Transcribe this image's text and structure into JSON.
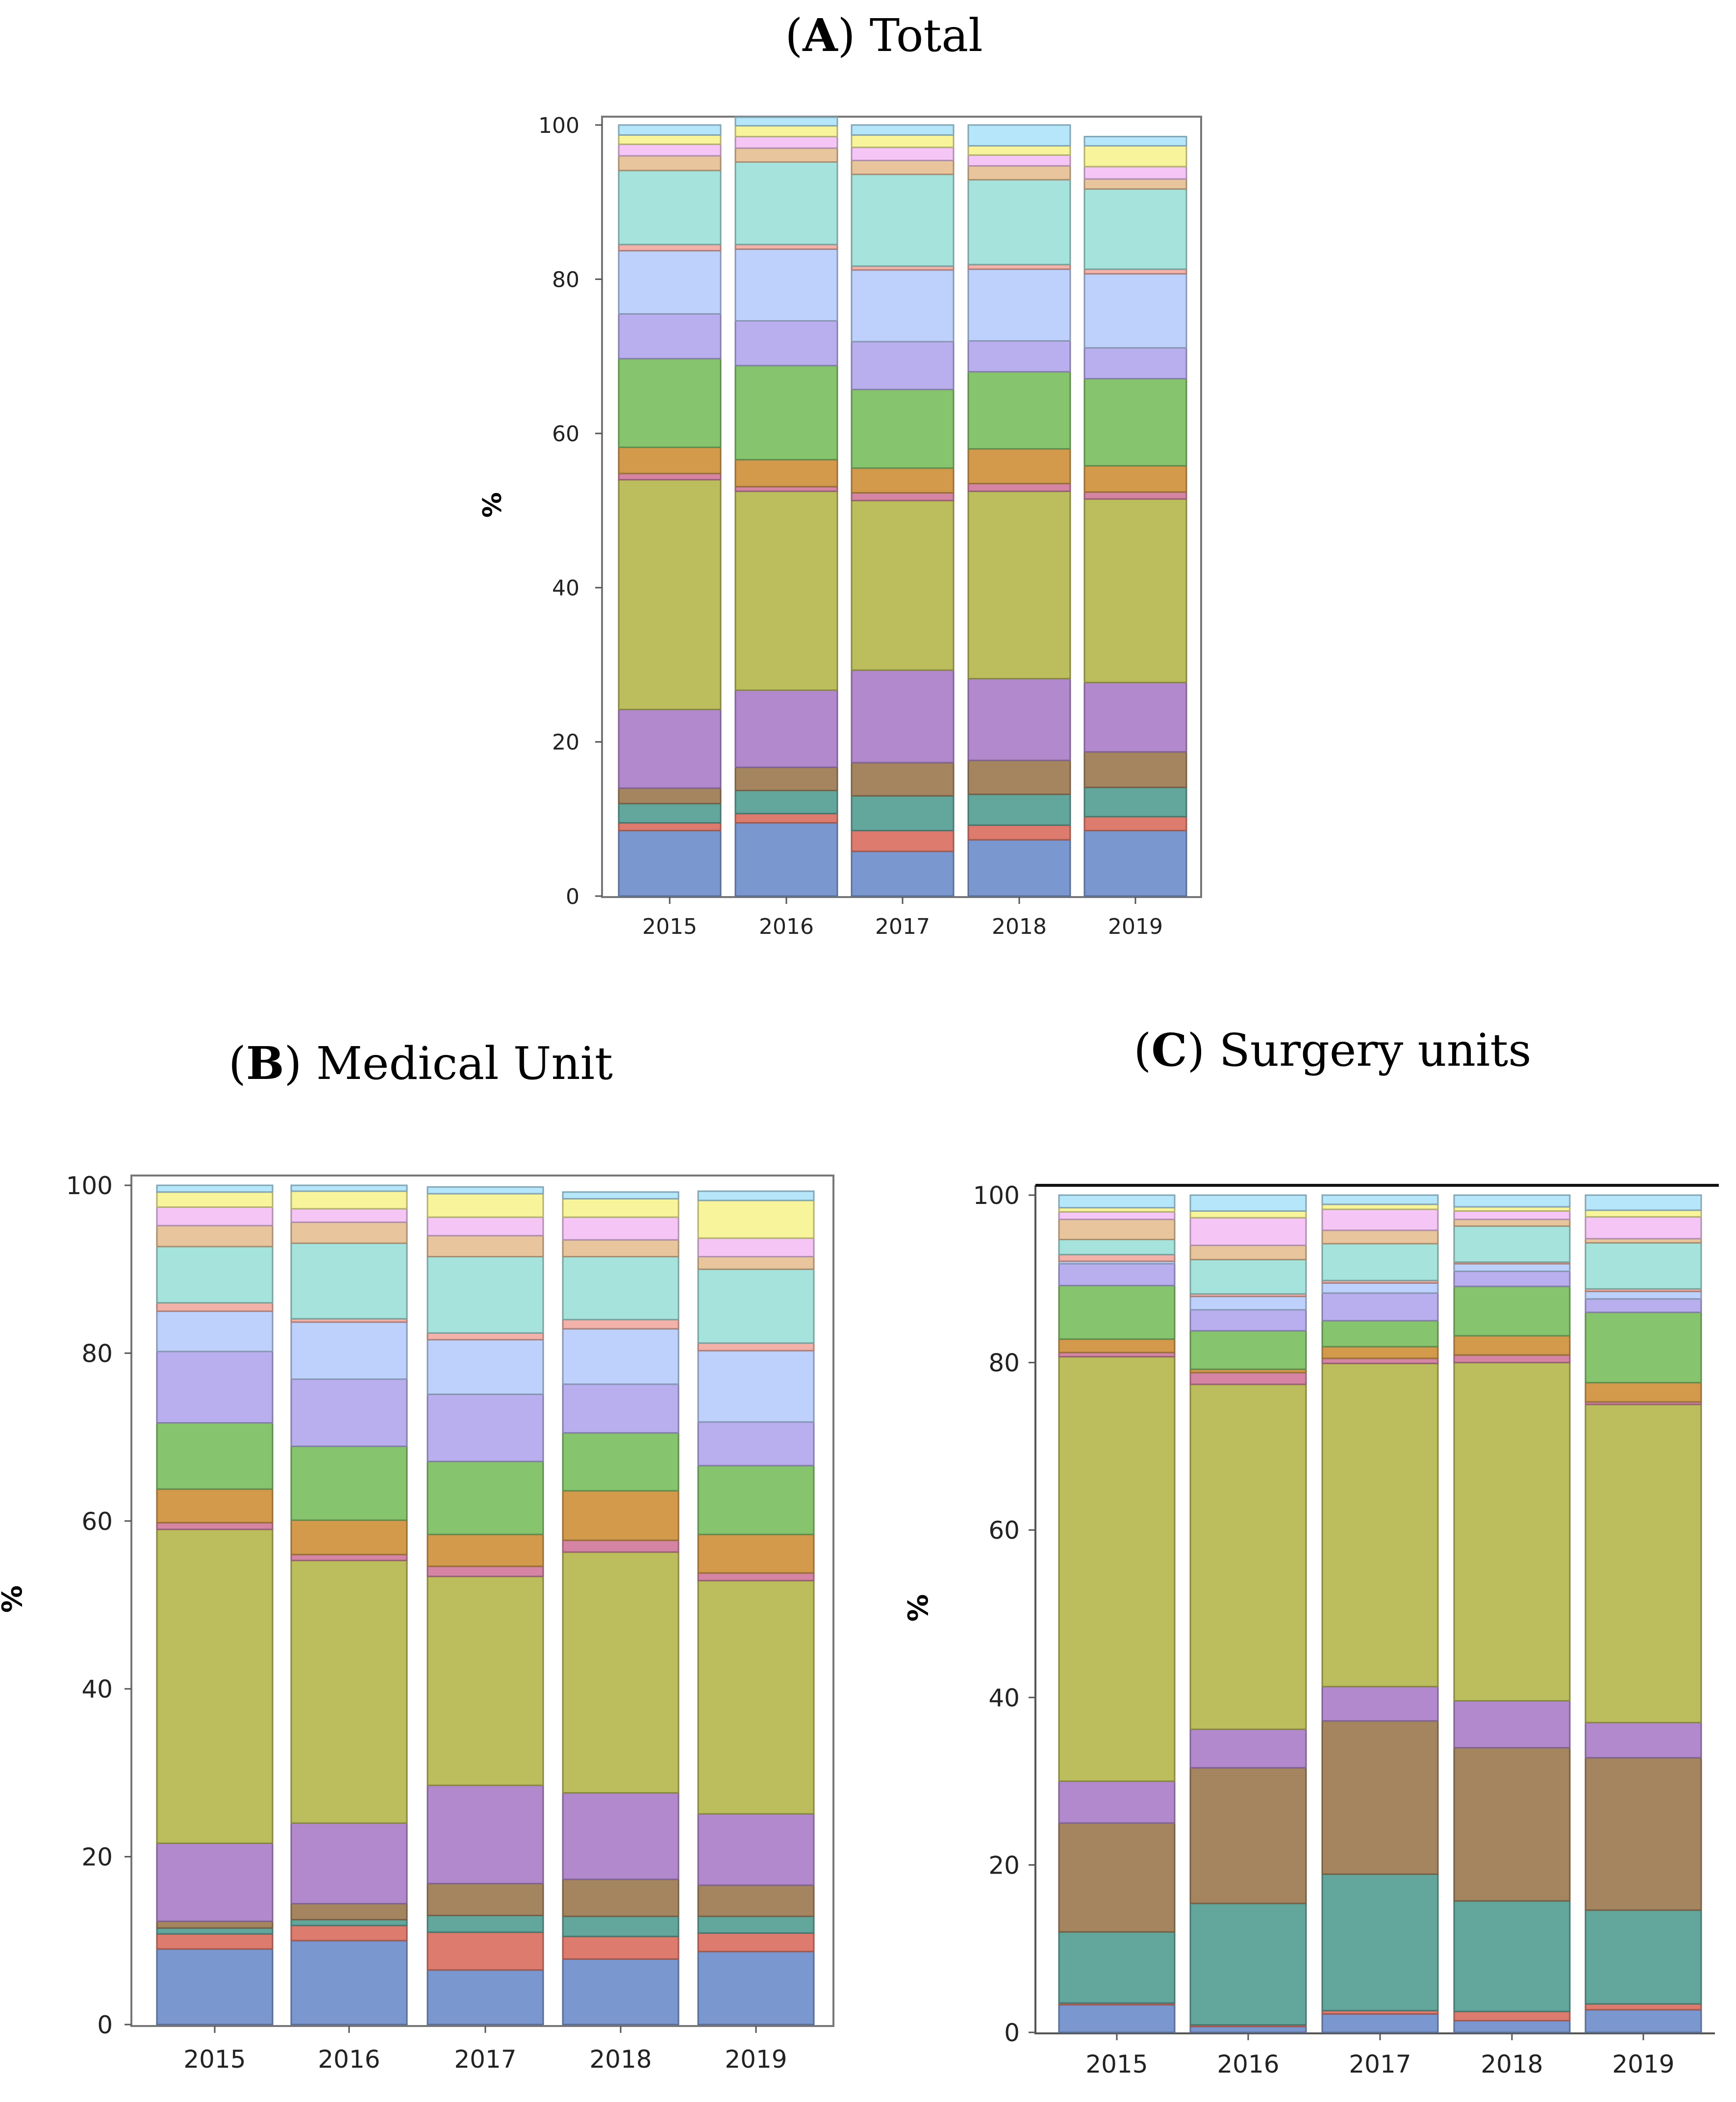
{
  "chart_data": [
    {
      "id": "A",
      "type": "bar",
      "stacked": true,
      "title_letter": "A",
      "title_text": "Total",
      "xlabel": "",
      "ylabel": "%",
      "ylim": [
        0,
        100
      ],
      "yticks": [
        "0",
        "20",
        "40",
        "60",
        "80",
        "100"
      ],
      "categories": [
        "2015",
        "2016",
        "2017",
        "2018",
        "2019"
      ],
      "series": [
        {
          "color": "#7b97cf",
          "values": [
            8.5,
            9.5,
            5.8,
            7.3,
            8.5
          ]
        },
        {
          "color": "#dd7b6e",
          "values": [
            1.0,
            1.2,
            2.7,
            1.9,
            1.8
          ]
        },
        {
          "color": "#62a69c",
          "values": [
            2.5,
            3.0,
            4.5,
            4.0,
            3.8
          ]
        },
        {
          "color": "#a58560",
          "values": [
            2.0,
            3.0,
            4.3,
            4.4,
            4.6
          ]
        },
        {
          "color": "#b289cc",
          "values": [
            10.2,
            10.0,
            12.0,
            10.6,
            9.0
          ]
        },
        {
          "color": "#bcbd5c",
          "values": [
            29.8,
            25.8,
            22.0,
            24.3,
            23.8
          ]
        },
        {
          "color": "#d585a3",
          "values": [
            0.8,
            0.6,
            1.0,
            1.0,
            0.9
          ]
        },
        {
          "color": "#d39a4c",
          "values": [
            3.4,
            3.5,
            3.2,
            4.5,
            3.4
          ]
        },
        {
          "color": "#86c46d",
          "values": [
            11.5,
            12.2,
            10.2,
            10.0,
            11.3
          ]
        },
        {
          "color": "#b9afee",
          "values": [
            5.8,
            5.8,
            6.2,
            4.0,
            4.0
          ]
        },
        {
          "color": "#bdd1fc",
          "values": [
            8.2,
            9.3,
            9.3,
            9.3,
            9.6
          ]
        },
        {
          "color": "#f2b2aa",
          "values": [
            0.8,
            0.6,
            0.5,
            0.6,
            0.6
          ]
        },
        {
          "color": "#a6e3dd",
          "values": [
            9.6,
            10.7,
            11.9,
            11.0,
            10.4
          ]
        },
        {
          "color": "#e9c59d",
          "values": [
            1.9,
            1.8,
            1.8,
            1.8,
            1.3
          ]
        },
        {
          "color": "#f5c6f5",
          "values": [
            1.5,
            1.5,
            1.7,
            1.4,
            1.6
          ]
        },
        {
          "color": "#f8f49b",
          "values": [
            1.2,
            1.4,
            1.6,
            1.2,
            2.7
          ]
        },
        {
          "color": "#b6e6fa",
          "values": [
            1.3,
            1.1,
            1.3,
            2.7,
            1.2
          ]
        }
      ]
    },
    {
      "id": "B",
      "type": "bar",
      "stacked": true,
      "title_letter": "B",
      "title_text": "Medical Unit",
      "xlabel": "",
      "ylabel": "%",
      "ylim": [
        0,
        100
      ],
      "yticks": [
        "0",
        "20",
        "40",
        "60",
        "80",
        "100"
      ],
      "categories": [
        "2015",
        "2016",
        "2017",
        "2018",
        "2019"
      ],
      "series": [
        {
          "color": "#7b97cf",
          "values": [
            9.0,
            10.0,
            6.5,
            7.8,
            8.7
          ]
        },
        {
          "color": "#dd7b6e",
          "values": [
            1.8,
            1.8,
            4.5,
            2.7,
            2.2
          ]
        },
        {
          "color": "#62a69c",
          "values": [
            0.7,
            0.7,
            2.0,
            2.4,
            2.0
          ]
        },
        {
          "color": "#a58560",
          "values": [
            0.8,
            1.9,
            3.8,
            4.4,
            3.7
          ]
        },
        {
          "color": "#b289cc",
          "values": [
            9.3,
            9.6,
            11.7,
            10.3,
            8.5
          ]
        },
        {
          "color": "#bcbd5c",
          "values": [
            37.4,
            31.3,
            24.9,
            28.7,
            27.8
          ]
        },
        {
          "color": "#d585a3",
          "values": [
            0.8,
            0.7,
            1.2,
            1.4,
            0.9
          ]
        },
        {
          "color": "#d39a4c",
          "values": [
            4.0,
            4.1,
            3.8,
            5.9,
            4.6
          ]
        },
        {
          "color": "#86c46d",
          "values": [
            7.9,
            8.8,
            8.7,
            6.9,
            8.2
          ]
        },
        {
          "color": "#b9afee",
          "values": [
            8.5,
            8.0,
            8.0,
            5.8,
            5.2
          ]
        },
        {
          "color": "#bdd1fc",
          "values": [
            4.8,
            6.8,
            6.5,
            6.6,
            8.5
          ]
        },
        {
          "color": "#f2b2aa",
          "values": [
            1.0,
            0.4,
            0.8,
            1.1,
            0.9
          ]
        },
        {
          "color": "#a6e3dd",
          "values": [
            6.7,
            9.0,
            9.1,
            7.5,
            8.8
          ]
        },
        {
          "color": "#e9c59d",
          "values": [
            2.5,
            2.5,
            2.5,
            2.0,
            1.5
          ]
        },
        {
          "color": "#f5c6f5",
          "values": [
            2.2,
            1.6,
            2.2,
            2.7,
            2.2
          ]
        },
        {
          "color": "#f8f49b",
          "values": [
            1.8,
            2.1,
            2.8,
            2.2,
            4.5
          ]
        },
        {
          "color": "#b6e6fa",
          "values": [
            0.8,
            0.7,
            0.8,
            0.8,
            1.1
          ]
        }
      ]
    },
    {
      "id": "C",
      "type": "bar",
      "stacked": true,
      "title_letter": "C",
      "title_text": "Surgery units",
      "xlabel": "",
      "ylabel": "%",
      "ylim": [
        0,
        100
      ],
      "yticks": [
        "0",
        "20",
        "40",
        "60",
        "80",
        "100"
      ],
      "categories": [
        "2015",
        "2016",
        "2017",
        "2018",
        "2019"
      ],
      "series": [
        {
          "color": "#7b97cf",
          "values": [
            3.3,
            0.7,
            2.2,
            1.4,
            2.7
          ]
        },
        {
          "color": "#dd7b6e",
          "values": [
            0.2,
            0.2,
            0.4,
            1.1,
            0.7
          ]
        },
        {
          "color": "#62a69c",
          "values": [
            8.5,
            14.5,
            16.3,
            13.2,
            11.2
          ]
        },
        {
          "color": "#a58560",
          "values": [
            13.0,
            16.2,
            18.3,
            18.3,
            18.2
          ]
        },
        {
          "color": "#b289cc",
          "values": [
            5.0,
            4.6,
            4.1,
            5.6,
            4.2
          ]
        },
        {
          "color": "#bcbd5c",
          "values": [
            50.7,
            41.2,
            38.6,
            40.4,
            38.0
          ]
        },
        {
          "color": "#d585a3",
          "values": [
            0.5,
            1.4,
            0.6,
            0.9,
            0.3
          ]
        },
        {
          "color": "#d39a4c",
          "values": [
            1.6,
            0.4,
            1.4,
            2.3,
            2.3
          ]
        },
        {
          "color": "#86c46d",
          "values": [
            6.4,
            4.6,
            3.1,
            5.9,
            8.4
          ]
        },
        {
          "color": "#b9afee",
          "values": [
            2.6,
            2.5,
            3.3,
            1.8,
            1.6
          ]
        },
        {
          "color": "#bdd1fc",
          "values": [
            0.3,
            1.6,
            1.2,
            0.9,
            0.9
          ]
        },
        {
          "color": "#f2b2aa",
          "values": [
            0.8,
            0.3,
            0.3,
            0.2,
            0.3
          ]
        },
        {
          "color": "#a6e3dd",
          "values": [
            1.8,
            4.1,
            4.4,
            4.3,
            5.5
          ]
        },
        {
          "color": "#e9c59d",
          "values": [
            2.4,
            1.7,
            1.6,
            0.8,
            0.5
          ]
        },
        {
          "color": "#f5c6f5",
          "values": [
            0.9,
            3.3,
            2.5,
            1.0,
            2.6
          ]
        },
        {
          "color": "#f8f49b",
          "values": [
            0.5,
            0.8,
            0.6,
            0.5,
            0.8
          ]
        },
        {
          "color": "#b6e6fa",
          "values": [
            1.5,
            1.9,
            1.1,
            1.4,
            1.8
          ]
        }
      ]
    }
  ]
}
